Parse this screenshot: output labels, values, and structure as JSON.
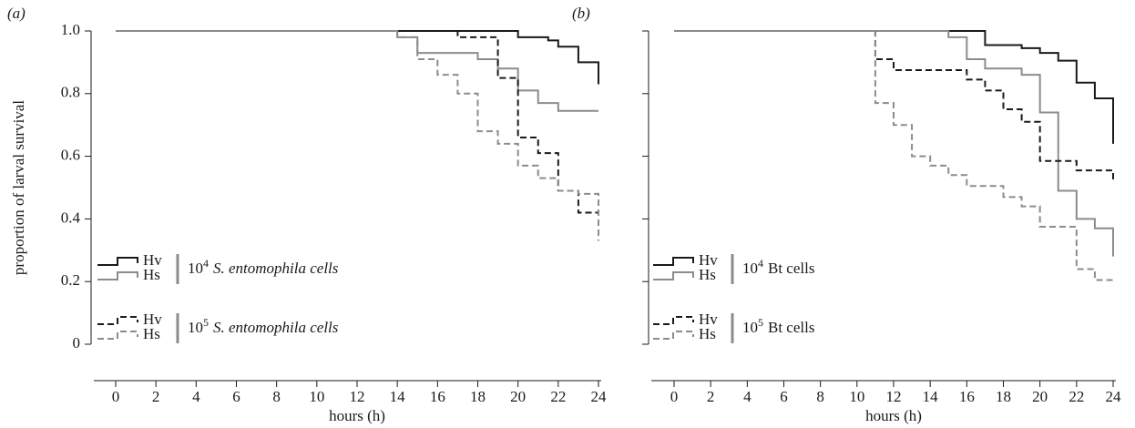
{
  "chart_data": [
    {
      "type": "step",
      "panel": "(a)",
      "ylabel": "proportion of larval survival",
      "xlabel": "hours (h)",
      "xlim": [
        0,
        24
      ],
      "xticks": [
        0,
        2,
        4,
        6,
        8,
        10,
        12,
        14,
        16,
        18,
        20,
        22,
        24
      ],
      "ylim": [
        0,
        1
      ],
      "yticks": [
        0,
        0.2,
        0.4,
        0.6,
        0.8,
        {
          "value": 1,
          "label": "1.0"
        }
      ],
      "ytick_labels": true,
      "groups": [
        {
          "base": "10",
          "exponent": "4",
          "text": "S. entomophila cells",
          "italic": true
        },
        {
          "base": "10",
          "exponent": "5",
          "text": "S. entomophila cells",
          "italic": true
        }
      ],
      "series": [
        {
          "name": "Hv",
          "group": 0,
          "dashed": false,
          "color": "#1a1a1a",
          "x": [
            0,
            20,
            21.5,
            22,
            23,
            24
          ],
          "values": [
            1,
            0.98,
            0.97,
            0.95,
            0.9,
            0.83
          ]
        },
        {
          "name": "Hs",
          "group": 0,
          "dashed": false,
          "color": "#8c8c8c",
          "x": [
            0,
            14,
            15,
            18,
            19,
            20,
            21,
            22,
            24
          ],
          "values": [
            1,
            0.98,
            0.93,
            0.91,
            0.88,
            0.81,
            0.77,
            0.745,
            0.745
          ]
        },
        {
          "name": "Hv",
          "group": 1,
          "dashed": true,
          "color": "#1a1a1a",
          "x": [
            0,
            17,
            19,
            20,
            21,
            22,
            23,
            24
          ],
          "values": [
            1,
            0.98,
            0.85,
            0.66,
            0.61,
            0.49,
            0.42,
            0.37
          ]
        },
        {
          "name": "Hs",
          "group": 1,
          "dashed": true,
          "color": "#8c8c8c",
          "x": [
            0,
            14,
            15,
            16,
            17,
            18,
            19,
            20,
            21,
            22,
            23,
            24
          ],
          "values": [
            1,
            0.98,
            0.91,
            0.86,
            0.8,
            0.68,
            0.64,
            0.57,
            0.53,
            0.49,
            0.48,
            0.33
          ]
        }
      ]
    },
    {
      "type": "step",
      "panel": "(b)",
      "xlabel": "hours (h)",
      "xlim": [
        0,
        24
      ],
      "xticks": [
        0,
        2,
        4,
        6,
        8,
        10,
        12,
        14,
        16,
        18,
        20,
        22,
        24
      ],
      "ylim": [
        0,
        1
      ],
      "yticks": [
        0,
        0.2,
        0.4,
        0.6,
        0.8,
        1
      ],
      "ytick_labels": false,
      "groups": [
        {
          "base": "10",
          "exponent": "4",
          "text": "Bt cells",
          "italic": false
        },
        {
          "base": "10",
          "exponent": "5",
          "text": "Bt cells",
          "italic": false
        }
      ],
      "series": [
        {
          "name": "Hv",
          "group": 0,
          "dashed": false,
          "color": "#1a1a1a",
          "x": [
            0,
            17,
            19,
            20,
            21,
            22,
            23,
            24
          ],
          "values": [
            1,
            0.955,
            0.945,
            0.93,
            0.905,
            0.835,
            0.785,
            0.64
          ]
        },
        {
          "name": "Hs",
          "group": 0,
          "dashed": false,
          "color": "#8c8c8c",
          "x": [
            0,
            15,
            16,
            17,
            19,
            20,
            21,
            22,
            23,
            24
          ],
          "values": [
            1,
            0.98,
            0.91,
            0.88,
            0.86,
            0.74,
            0.49,
            0.4,
            0.37,
            0.28
          ]
        },
        {
          "name": "Hv",
          "group": 1,
          "dashed": true,
          "color": "#1a1a1a",
          "x": [
            0,
            11,
            12,
            16,
            17,
            18,
            19,
            20,
            22,
            24
          ],
          "values": [
            1,
            0.91,
            0.875,
            0.845,
            0.81,
            0.75,
            0.71,
            0.585,
            0.555,
            0.52
          ]
        },
        {
          "name": "Hs",
          "group": 1,
          "dashed": true,
          "color": "#8c8c8c",
          "x": [
            0,
            11,
            12,
            13,
            14,
            15,
            16,
            18,
            19,
            20,
            22,
            23,
            24
          ],
          "values": [
            1,
            0.77,
            0.7,
            0.6,
            0.57,
            0.54,
            0.505,
            0.47,
            0.44,
            0.375,
            0.24,
            0.205,
            0.205
          ]
        }
      ]
    }
  ]
}
